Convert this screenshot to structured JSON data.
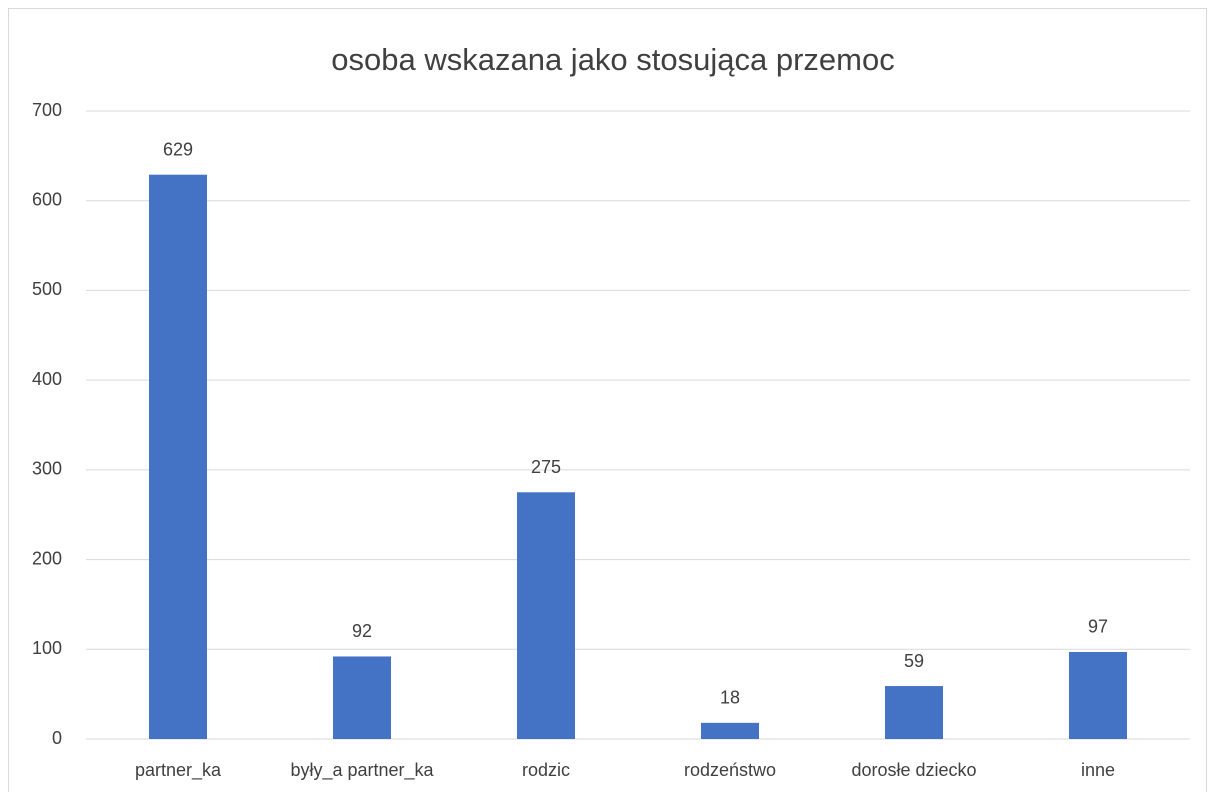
{
  "chart_data": {
    "type": "bar",
    "title": "osoba wskazana jako stosująca przemoc",
    "categories": [
      "partner_ka",
      "były_a partner_ka",
      "rodzic",
      "rodzeństwo",
      "dorosłe dziecko",
      "inne"
    ],
    "values": [
      629,
      92,
      275,
      18,
      59,
      97
    ],
    "color": "#4472c4",
    "ylim": [
      0,
      700
    ],
    "yticks": [
      0,
      100,
      200,
      300,
      400,
      500,
      600,
      700
    ],
    "grid": true
  }
}
